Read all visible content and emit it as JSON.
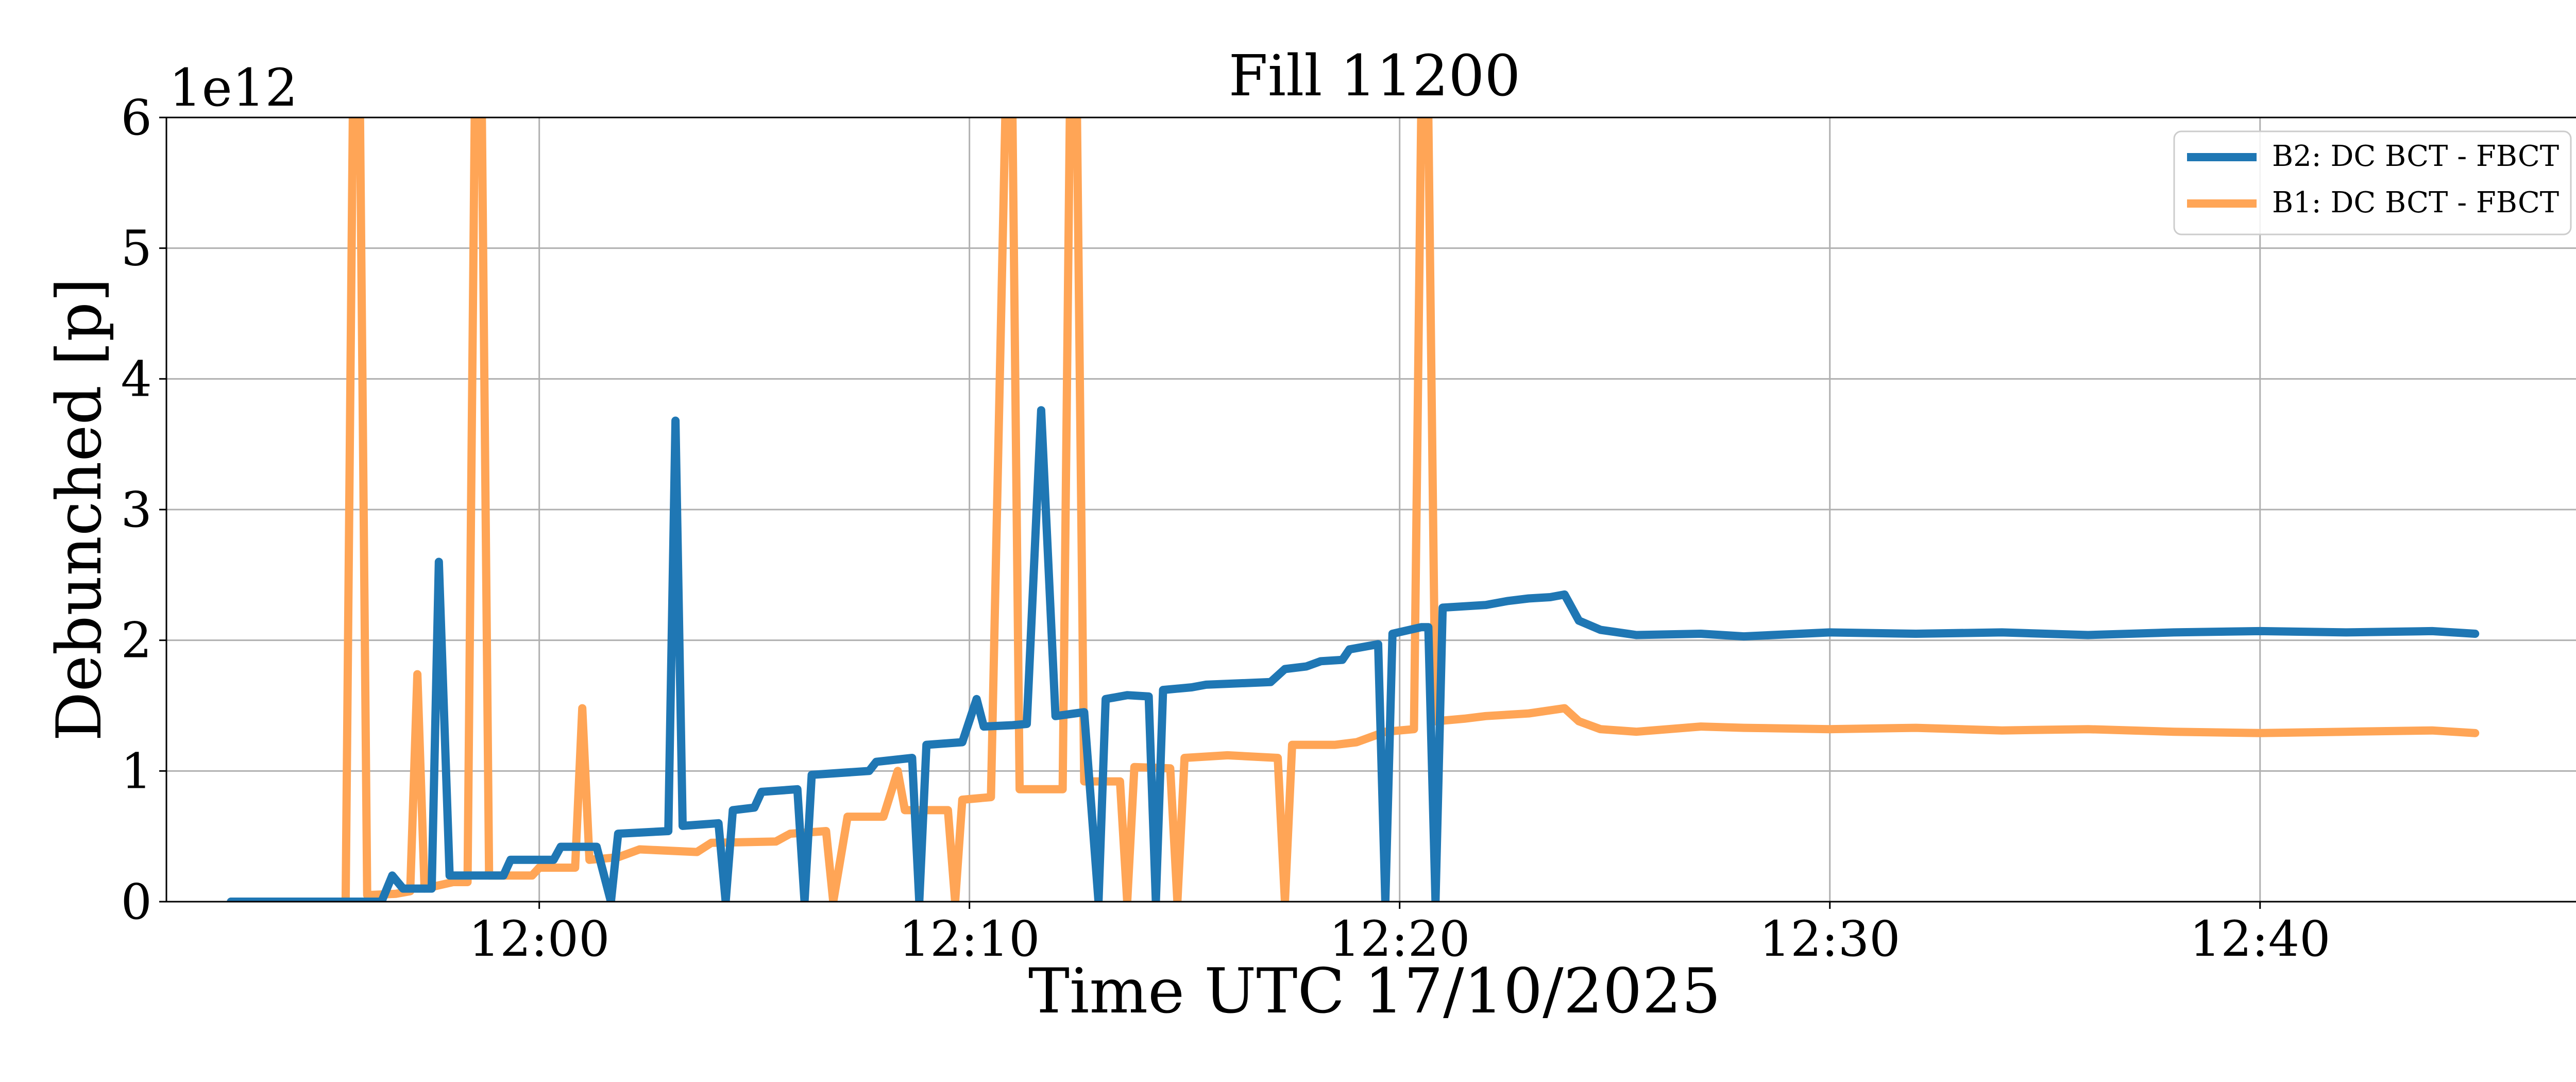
{
  "chart_data": {
    "type": "line",
    "title": "Fill 11200",
    "xlabel": "Time UTC 17/10/2025",
    "ylabel": "Debunched [p]",
    "y_offset_label": "1e12",
    "y_multiplier": 1000000000000.0,
    "xlim": [
      "11:51:20",
      "12:47:30"
    ],
    "ylim": [
      0,
      6
    ],
    "x_ticks": [
      "12:00",
      "12:10",
      "12:20",
      "12:30",
      "12:40"
    ],
    "y_ticks": [
      0,
      1,
      2,
      3,
      4,
      5,
      6
    ],
    "grid": true,
    "legend_position": "upper right",
    "series": [
      {
        "name": "B2: DC BCT - FBCT",
        "color": "#1f77b4",
        "points": [
          [
            "11:52:50",
            0.0
          ],
          [
            "11:56:20",
            0.0
          ],
          [
            "11:56:35",
            0.2
          ],
          [
            "11:56:50",
            0.1
          ],
          [
            "11:57:30",
            0.1
          ],
          [
            "11:57:40",
            2.6
          ],
          [
            "11:57:55",
            0.2
          ],
          [
            "11:59:10",
            0.2
          ],
          [
            "11:59:20",
            0.32
          ],
          [
            "12:00:20",
            0.32
          ],
          [
            "12:00:30",
            0.42
          ],
          [
            "12:01:20",
            0.42
          ],
          [
            "12:01:40",
            0.0
          ],
          [
            "12:01:50",
            0.52
          ],
          [
            "12:03:00",
            0.54
          ],
          [
            "12:03:10",
            3.68
          ],
          [
            "12:03:20",
            0.58
          ],
          [
            "12:04:10",
            0.6
          ],
          [
            "12:04:20",
            0.0
          ],
          [
            "12:04:30",
            0.7
          ],
          [
            "12:05:00",
            0.72
          ],
          [
            "12:05:10",
            0.84
          ],
          [
            "12:06:00",
            0.86
          ],
          [
            "12:06:10",
            0.0
          ],
          [
            "12:06:20",
            0.97
          ],
          [
            "12:07:40",
            1.0
          ],
          [
            "12:07:50",
            1.07
          ],
          [
            "12:08:40",
            1.1
          ],
          [
            "12:08:50",
            0.0
          ],
          [
            "12:09:00",
            1.2
          ],
          [
            "12:09:50",
            1.22
          ],
          [
            "12:10:10",
            1.55
          ],
          [
            "12:10:20",
            1.34
          ],
          [
            "12:11:00",
            1.35
          ],
          [
            "12:11:20",
            1.36
          ],
          [
            "12:11:40",
            3.76
          ],
          [
            "12:12:00",
            1.42
          ],
          [
            "12:12:40",
            1.45
          ],
          [
            "12:13:00",
            0.0
          ],
          [
            "12:13:10",
            1.55
          ],
          [
            "12:13:40",
            1.58
          ],
          [
            "12:14:10",
            1.57
          ],
          [
            "12:14:20",
            0.0
          ],
          [
            "12:14:30",
            1.62
          ],
          [
            "12:15:10",
            1.64
          ],
          [
            "12:15:30",
            1.66
          ],
          [
            "12:17:00",
            1.68
          ],
          [
            "12:17:20",
            1.78
          ],
          [
            "12:17:50",
            1.8
          ],
          [
            "12:18:10",
            1.84
          ],
          [
            "12:18:40",
            1.85
          ],
          [
            "12:18:50",
            1.93
          ],
          [
            "12:19:30",
            1.97
          ],
          [
            "12:19:40",
            0.0
          ],
          [
            "12:19:50",
            2.05
          ],
          [
            "12:20:30",
            2.1
          ],
          [
            "12:20:40",
            2.1
          ],
          [
            "12:20:50",
            0.0
          ],
          [
            "12:21:00",
            2.25
          ],
          [
            "12:22:00",
            2.27
          ],
          [
            "12:22:30",
            2.3
          ],
          [
            "12:23:00",
            2.32
          ],
          [
            "12:23:30",
            2.33
          ],
          [
            "12:23:50",
            2.35
          ],
          [
            "12:24:10",
            2.15
          ],
          [
            "12:24:40",
            2.08
          ],
          [
            "12:25:30",
            2.04
          ],
          [
            "12:27:00",
            2.05
          ],
          [
            "12:28:00",
            2.03
          ],
          [
            "12:30:00",
            2.06
          ],
          [
            "12:32:00",
            2.05
          ],
          [
            "12:34:00",
            2.06
          ],
          [
            "12:36:00",
            2.04
          ],
          [
            "12:38:00",
            2.06
          ],
          [
            "12:40:00",
            2.07
          ],
          [
            "12:42:00",
            2.06
          ],
          [
            "12:44:00",
            2.07
          ],
          [
            "12:45:00",
            2.05
          ]
        ]
      },
      {
        "name": "B1: DC BCT - FBCT",
        "color": "#ffa556",
        "points": [
          [
            "11:52:50",
            0.0
          ],
          [
            "11:55:30",
            0.0
          ],
          [
            "11:55:40",
            6.0
          ],
          [
            "11:55:50",
            6.0
          ],
          [
            "11:56:00",
            0.05
          ],
          [
            "11:56:40",
            0.06
          ],
          [
            "11:57:00",
            0.08
          ],
          [
            "11:57:10",
            1.74
          ],
          [
            "11:57:20",
            0.1
          ],
          [
            "11:58:00",
            0.15
          ],
          [
            "11:58:20",
            0.15
          ],
          [
            "11:58:30",
            6.0
          ],
          [
            "11:58:40",
            6.0
          ],
          [
            "11:58:50",
            0.2
          ],
          [
            "11:59:50",
            0.2
          ],
          [
            "12:00:00",
            0.26
          ],
          [
            "12:00:50",
            0.26
          ],
          [
            "12:01:00",
            1.48
          ],
          [
            "12:01:10",
            0.32
          ],
          [
            "12:01:50",
            0.34
          ],
          [
            "12:02:20",
            0.4
          ],
          [
            "12:03:40",
            0.38
          ],
          [
            "12:04:00",
            0.45
          ],
          [
            "12:05:30",
            0.46
          ],
          [
            "12:05:50",
            0.52
          ],
          [
            "12:06:40",
            0.54
          ],
          [
            "12:06:50",
            0.0
          ],
          [
            "12:07:10",
            0.65
          ],
          [
            "12:08:00",
            0.65
          ],
          [
            "12:08:20",
            1.0
          ],
          [
            "12:08:30",
            0.7
          ],
          [
            "12:09:30",
            0.7
          ],
          [
            "12:09:40",
            0.0
          ],
          [
            "12:09:50",
            0.78
          ],
          [
            "12:10:30",
            0.8
          ],
          [
            "12:10:50",
            6.0
          ],
          [
            "12:11:00",
            6.0
          ],
          [
            "12:11:10",
            0.86
          ],
          [
            "12:12:10",
            0.86
          ],
          [
            "12:12:20",
            6.0
          ],
          [
            "12:12:30",
            6.0
          ],
          [
            "12:12:40",
            0.92
          ],
          [
            "12:13:30",
            0.92
          ],
          [
            "12:13:40",
            0.0
          ],
          [
            "12:13:50",
            1.03
          ],
          [
            "12:14:40",
            1.02
          ],
          [
            "12:14:50",
            0.0
          ],
          [
            "12:15:00",
            1.1
          ],
          [
            "12:16:00",
            1.12
          ],
          [
            "12:17:10",
            1.1
          ],
          [
            "12:17:20",
            0.0
          ],
          [
            "12:17:30",
            1.2
          ],
          [
            "12:18:30",
            1.2
          ],
          [
            "12:19:00",
            1.22
          ],
          [
            "12:19:40",
            1.3
          ],
          [
            "12:20:20",
            1.32
          ],
          [
            "12:20:30",
            6.0
          ],
          [
            "12:20:40",
            6.0
          ],
          [
            "12:20:50",
            1.38
          ],
          [
            "12:21:30",
            1.4
          ],
          [
            "12:22:00",
            1.42
          ],
          [
            "12:23:00",
            1.44
          ],
          [
            "12:23:50",
            1.48
          ],
          [
            "12:24:10",
            1.38
          ],
          [
            "12:24:40",
            1.32
          ],
          [
            "12:25:30",
            1.3
          ],
          [
            "12:27:00",
            1.34
          ],
          [
            "12:28:00",
            1.33
          ],
          [
            "12:30:00",
            1.32
          ],
          [
            "12:32:00",
            1.33
          ],
          [
            "12:34:00",
            1.31
          ],
          [
            "12:36:00",
            1.32
          ],
          [
            "12:38:00",
            1.3
          ],
          [
            "12:40:00",
            1.29
          ],
          [
            "12:42:00",
            1.3
          ],
          [
            "12:44:00",
            1.31
          ],
          [
            "12:45:00",
            1.29
          ]
        ]
      }
    ]
  }
}
